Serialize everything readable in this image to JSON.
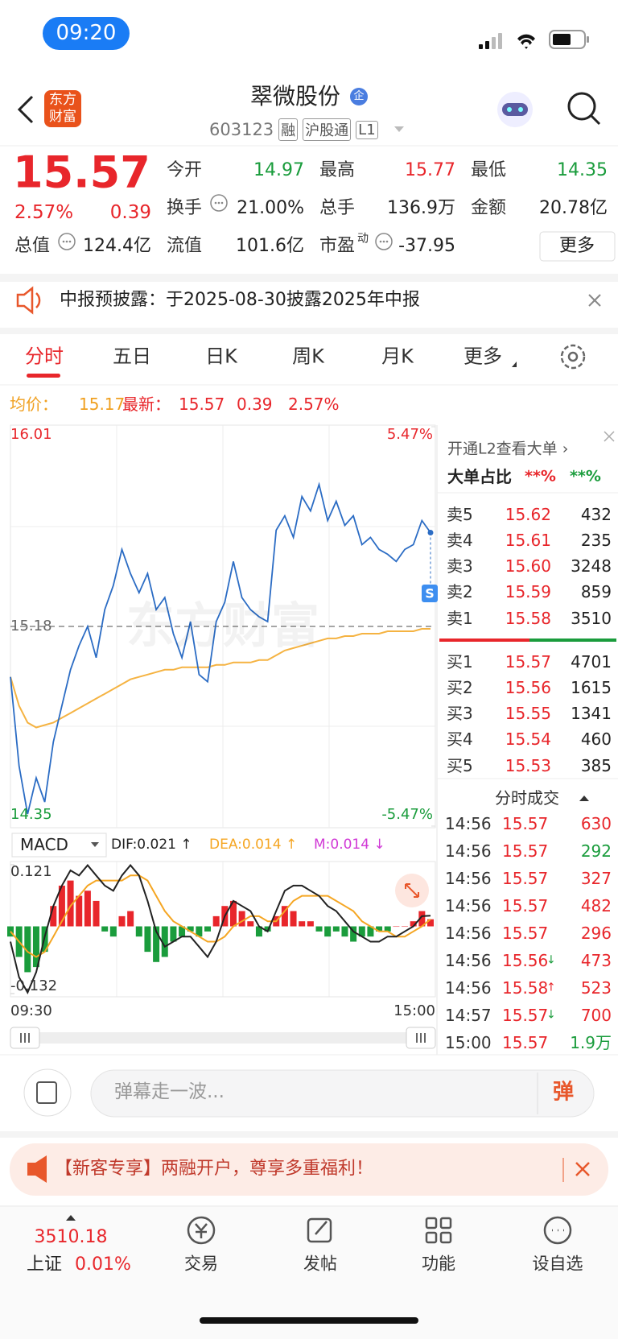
{
  "status": {
    "time": "09:20"
  },
  "header": {
    "logo": "东方财富",
    "title": "翠微股份",
    "badge": "企",
    "code": "603123",
    "tags": [
      "融",
      "沪股通",
      "L1"
    ]
  },
  "quote": {
    "price": "15.57",
    "change_pct": "2.57%",
    "change": "0.39",
    "more": "更多",
    "fields": [
      {
        "label": "今开",
        "value": "14.97",
        "color": "#1a9c3c"
      },
      {
        "label": "最高",
        "value": "15.77",
        "color": "#e8262b"
      },
      {
        "label": "最低",
        "value": "14.35",
        "color": "#1a9c3c"
      },
      {
        "label": "换手",
        "value": "21.00%",
        "color": "#222222"
      },
      {
        "label": "总手",
        "value": "136.9万",
        "color": "#222222"
      },
      {
        "label": "金额",
        "value": "20.78亿",
        "color": "#222222"
      },
      {
        "label": "总值",
        "value": "124.4亿",
        "color": "#222222"
      },
      {
        "label": "流值",
        "value": "101.6亿",
        "color": "#222222"
      },
      {
        "label": "市盈",
        "sup": "动",
        "value": "-37.95",
        "color": "#222222"
      }
    ]
  },
  "notice": {
    "text": "中报预披露：于2025-08-30披露2025年中报"
  },
  "tabs": [
    "分时",
    "五日",
    "日K",
    "周K",
    "月K",
    "更多"
  ],
  "summary": {
    "avg_label": "均价：",
    "avg": "15.17",
    "latest_label": "最新：",
    "latest": "15.57",
    "change": "0.39",
    "change_pct": "2.57%"
  },
  "chart_data": [
    {
      "type": "line",
      "watermark": "东方财富",
      "marker": "S",
      "categories": [
        "09:30",
        null,
        null,
        null,
        null,
        null,
        null,
        null,
        null,
        null,
        null,
        null,
        null,
        null,
        null,
        null,
        null,
        null,
        null,
        null,
        null,
        null,
        null,
        null,
        null,
        null,
        null,
        null,
        null,
        null,
        null,
        null,
        null,
        null,
        null,
        null,
        null,
        null,
        null,
        null,
        null,
        null,
        null,
        null,
        null,
        null,
        null,
        null,
        null,
        "15:00"
      ],
      "series": [
        {
          "color": "#2b6cc4",
          "values": [
            14.97,
            14.6,
            14.4,
            14.55,
            14.45,
            14.7,
            14.85,
            15.0,
            15.1,
            15.18,
            15.05,
            15.25,
            15.35,
            15.5,
            15.4,
            15.32,
            15.4,
            15.25,
            15.3,
            15.15,
            15.05,
            15.2,
            14.98,
            14.95,
            15.2,
            15.28,
            15.45,
            15.3,
            15.25,
            15.22,
            15.2,
            15.58,
            15.64,
            15.55,
            15.72,
            15.66,
            15.77,
            15.62,
            15.7,
            15.6,
            15.64,
            15.52,
            15.55,
            15.5,
            15.48,
            15.45,
            15.5,
            15.52,
            15.62,
            15.57
          ]
        },
        {
          "color": "#f5b342",
          "values": [
            14.97,
            14.85,
            14.78,
            14.76,
            14.77,
            14.78,
            14.8,
            14.82,
            14.84,
            14.86,
            14.88,
            14.9,
            14.92,
            14.94,
            14.96,
            14.97,
            14.98,
            14.99,
            15.0,
            15.0,
            15.01,
            15.01,
            15.01,
            15.01,
            15.02,
            15.02,
            15.03,
            15.03,
            15.03,
            15.04,
            15.04,
            15.06,
            15.08,
            15.09,
            15.1,
            15.11,
            15.12,
            15.13,
            15.13,
            15.14,
            15.14,
            15.15,
            15.15,
            15.15,
            15.16,
            15.16,
            15.16,
            15.16,
            15.17,
            15.17
          ]
        }
      ],
      "ylim": [
        14.35,
        16.01
      ],
      "yticks": [
        16.01,
        15.18,
        14.35
      ],
      "y2lim": [
        -5.47,
        5.47
      ],
      "y2ticks": [
        {
          "value": 5.47,
          "label": "5.47%"
        },
        {
          "value": -5.47,
          "label": "-5.47%"
        }
      ]
    },
    {
      "type": "bar",
      "indicator": "MACD",
      "series": [
        {
          "name": "DIF:0.021 ↑",
          "color": "#222222",
          "values": [
            -0.03,
            -0.1,
            -0.13,
            -0.09,
            -0.02,
            0.04,
            0.08,
            0.11,
            0.1,
            0.12,
            0.1,
            0.08,
            0.07,
            0.1,
            0.12,
            0.1,
            0.05,
            -0.01,
            -0.04,
            -0.03,
            -0.02,
            -0.02,
            -0.04,
            -0.06,
            -0.03,
            0.02,
            0.05,
            0.04,
            0.03,
            0.0,
            -0.01,
            0.03,
            0.07,
            0.08,
            0.08,
            0.07,
            0.06,
            0.04,
            0.03,
            0.01,
            -0.01,
            -0.02,
            -0.03,
            -0.03,
            -0.02,
            -0.02,
            -0.01,
            0.0,
            0.02,
            0.021
          ]
        },
        {
          "name": "DEA:0.014 ↑",
          "color": "#f5a623",
          "values": [
            -0.01,
            -0.03,
            -0.05,
            -0.06,
            -0.05,
            -0.02,
            0.01,
            0.04,
            0.06,
            0.08,
            0.09,
            0.09,
            0.09,
            0.09,
            0.1,
            0.1,
            0.09,
            0.06,
            0.03,
            0.01,
            0.0,
            -0.01,
            -0.02,
            -0.03,
            -0.03,
            -0.02,
            0.0,
            0.01,
            0.02,
            0.02,
            0.01,
            0.01,
            0.03,
            0.05,
            0.06,
            0.06,
            0.06,
            0.06,
            0.05,
            0.04,
            0.03,
            0.01,
            0.0,
            -0.01,
            -0.01,
            -0.02,
            -0.02,
            -0.01,
            0.0,
            0.014
          ]
        },
        {
          "name": "M:0.014 ↓",
          "color": "#d13ad6",
          "up_color": "#e8262b",
          "down_color": "#1a9c3c",
          "values": [
            -0.02,
            -0.06,
            -0.09,
            -0.08,
            -0.05,
            0.04,
            0.08,
            0.09,
            0.06,
            0.07,
            0.05,
            -0.01,
            -0.02,
            0.02,
            0.03,
            -0.02,
            -0.05,
            -0.07,
            -0.06,
            -0.03,
            -0.02,
            -0.01,
            -0.02,
            -0.01,
            0.02,
            0.04,
            0.05,
            0.03,
            0.01,
            -0.02,
            -0.01,
            0.02,
            0.04,
            0.03,
            0.01,
            0.01,
            -0.01,
            -0.02,
            -0.01,
            -0.02,
            -0.03,
            -0.02,
            -0.02,
            -0.01,
            -0.01,
            0.0,
            0.0,
            0.01,
            0.03,
            0.014
          ]
        }
      ],
      "ylim": [
        -0.132,
        0.121
      ],
      "yticks": [
        0.121,
        -0.132
      ]
    }
  ],
  "panel": {
    "l2_link": "开通L2查看大单 ›",
    "big_order": "大单占比",
    "big_buy": "**%",
    "big_sell": "**%",
    "asks": [
      {
        "label": "卖5",
        "price": "15.62",
        "vol": "432"
      },
      {
        "label": "卖4",
        "price": "15.61",
        "vol": "235"
      },
      {
        "label": "卖3",
        "price": "15.60",
        "vol": "3248"
      },
      {
        "label": "卖2",
        "price": "15.59",
        "vol": "859"
      },
      {
        "label": "卖1",
        "price": "15.58",
        "vol": "3510"
      }
    ],
    "bids": [
      {
        "label": "买1",
        "price": "15.57",
        "vol": "4701"
      },
      {
        "label": "买2",
        "price": "15.56",
        "vol": "1615"
      },
      {
        "label": "买3",
        "price": "15.55",
        "vol": "1341"
      },
      {
        "label": "买4",
        "price": "15.54",
        "vol": "460"
      },
      {
        "label": "买5",
        "price": "15.53",
        "vol": "385"
      }
    ],
    "trades_title": "分时成交",
    "trades": [
      {
        "time": "14:56",
        "price": "15.57",
        "vol": "630",
        "color": "#e8262b"
      },
      {
        "time": "14:56",
        "price": "15.57",
        "vol": "292",
        "color": "#1a9c3c"
      },
      {
        "time": "14:56",
        "price": "15.57",
        "vol": "327",
        "color": "#e8262b"
      },
      {
        "time": "14:56",
        "price": "15.57",
        "vol": "482",
        "color": "#e8262b"
      },
      {
        "time": "14:56",
        "price": "15.57",
        "vol": "296",
        "color": "#e8262b"
      },
      {
        "time": "14:56",
        "price": "15.56",
        "arrow": "↓",
        "vol": "473",
        "color": "#e8262b"
      },
      {
        "time": "14:56",
        "price": "15.58",
        "arrow": "↑",
        "vol": "523",
        "color": "#e8262b"
      },
      {
        "time": "14:57",
        "price": "15.57",
        "arrow": "↓",
        "vol": "700",
        "color": "#e8262b"
      },
      {
        "time": "15:00",
        "price": "15.57",
        "vol": "1.9万",
        "color": "#1a9c3c"
      }
    ]
  },
  "comment": {
    "placeholder": "弹幕走一波...",
    "button": "弹"
  },
  "promo": {
    "text": "【新客专享】两融开户，尊享多重福利！"
  },
  "nav": {
    "index": {
      "value": "3510.18",
      "name": "上证",
      "change": "0.01%"
    },
    "items": [
      "交易",
      "发帖",
      "功能",
      "设自选"
    ]
  }
}
